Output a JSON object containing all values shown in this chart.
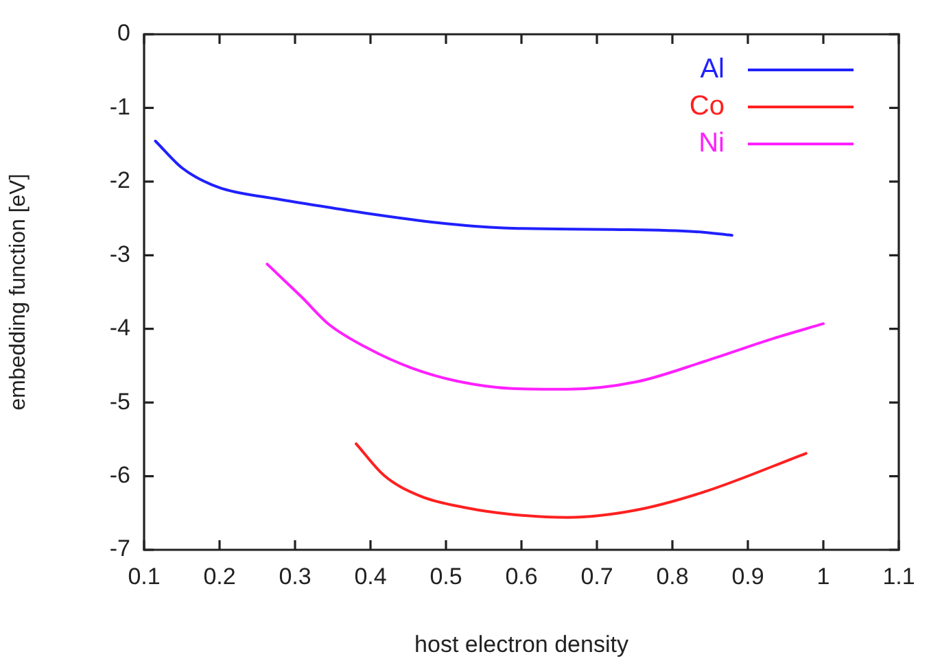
{
  "chart_data": {
    "type": "line",
    "xlabel": "host electron density",
    "ylabel": "embedding function [eV]",
    "xlim": [
      0.1,
      1.1
    ],
    "xticks": [
      0.1,
      0.2,
      0.3,
      0.4,
      0.5,
      0.6,
      0.7,
      0.8,
      0.9,
      1,
      1.1
    ],
    "ylim": [
      -7,
      0
    ],
    "yticks": [
      -7,
      -6,
      -5,
      -4,
      -3,
      -2,
      -1,
      0
    ],
    "grid": false,
    "legend": "top right",
    "marker": "none",
    "line_style": "solid",
    "series": [
      {
        "name": "Al",
        "color": "#2020ff",
        "x": [
          0.115,
          0.151,
          0.199,
          0.272,
          0.345,
          0.394,
          0.49,
          0.576,
          0.721,
          0.831,
          0.879
        ],
        "values": [
          -1.45,
          -1.82,
          -2.08,
          -2.23,
          -2.35,
          -2.43,
          -2.56,
          -2.63,
          -2.65,
          -2.68,
          -2.73
        ]
      },
      {
        "name": "Co",
        "color": "#ff2020",
        "x": [
          0.381,
          0.418,
          0.466,
          0.527,
          0.588,
          0.661,
          0.752,
          0.843,
          0.977
        ],
        "values": [
          -5.56,
          -5.99,
          -6.27,
          -6.43,
          -6.52,
          -6.56,
          -6.46,
          -6.21,
          -5.69
        ]
      },
      {
        "name": "Ni",
        "color": "#ff20ff",
        "x": [
          0.263,
          0.309,
          0.345,
          0.394,
          0.454,
          0.515,
          0.588,
          0.661,
          0.752,
          0.843,
          0.934,
          1.0
        ],
        "values": [
          -3.12,
          -3.57,
          -3.94,
          -4.25,
          -4.53,
          -4.71,
          -4.81,
          -4.82,
          -4.72,
          -4.44,
          -4.13,
          -3.93
        ]
      }
    ]
  }
}
